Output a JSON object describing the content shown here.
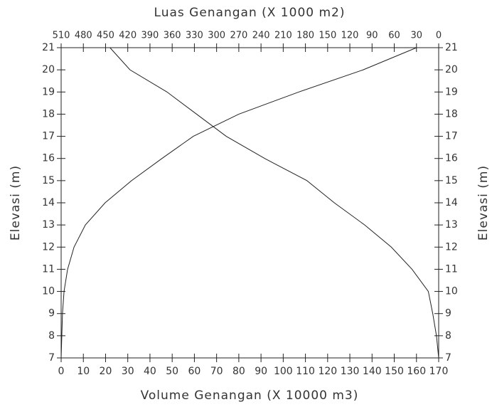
{
  "chart_data": {
    "type": "line",
    "x_label": "Volume Genangan (X 10000 m3)",
    "x2_label": "Luas Genangan (X 1000 m2)",
    "y_label": "Elevasi (m)",
    "y": [
      7,
      8,
      9,
      10,
      11,
      12,
      13,
      14,
      15,
      16,
      17,
      18,
      19,
      20,
      21
    ],
    "series": [
      {
        "color": "#222222",
        "axis": "x",
        "values": [
          0,
          0.3,
          0.6,
          1.3,
          2.9,
          5.8,
          10.9,
          19.8,
          31.7,
          45.4,
          59.5,
          80,
          107,
          136,
          160
        ]
      },
      {
        "color": "#222222",
        "axis": "x2",
        "values": [
          0,
          3,
          8,
          14,
          36,
          64,
          100,
          141,
          178,
          235,
          287,
          327,
          367,
          417,
          444
        ]
      }
    ],
    "xlim": [
      0,
      170
    ],
    "xticks": [
      0,
      10,
      20,
      30,
      40,
      50,
      60,
      70,
      80,
      90,
      100,
      110,
      120,
      130,
      140,
      150,
      160,
      170
    ],
    "x2lim": [
      510,
      0
    ],
    "x2ticks": [
      510,
      480,
      450,
      420,
      390,
      360,
      330,
      300,
      270,
      240,
      210,
      180,
      150,
      120,
      90,
      60,
      30,
      0
    ],
    "ylim": [
      7,
      21
    ],
    "yticks": [
      7,
      8,
      9,
      10,
      11,
      12,
      13,
      14,
      15,
      16,
      17,
      18,
      19,
      20,
      21
    ],
    "grid": false
  }
}
